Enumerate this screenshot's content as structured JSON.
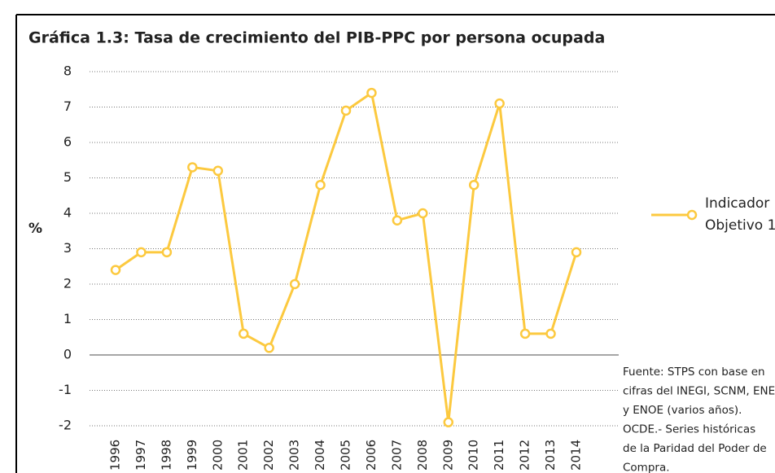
{
  "chart_data": {
    "type": "line",
    "title": "Gráfica 1.3: Tasa de crecimiento del PIB-PPC por persona ocupada",
    "y_label": "%",
    "categories": [
      "1996",
      "1997",
      "1998",
      "1999",
      "2000",
      "2001",
      "2002",
      "2003",
      "2004",
      "2005",
      "2006",
      "2007",
      "2008",
      "2009",
      "2010",
      "2011",
      "2012",
      "2013",
      "2014"
    ],
    "series": [
      {
        "name": [
          "Indicador",
          "Objetivo 1"
        ],
        "color": "#fcc93f",
        "values": [
          2.4,
          2.9,
          2.9,
          5.3,
          5.2,
          0.6,
          0.2,
          2.0,
          4.8,
          6.9,
          7.4,
          3.8,
          4.0,
          -1.9,
          4.8,
          7.1,
          0.6,
          0.6,
          2.9
        ]
      }
    ],
    "ylim": [
      -2,
      8
    ],
    "yticks": [
      -2,
      -1,
      0,
      1,
      2,
      3,
      4,
      5,
      6,
      7,
      8
    ],
    "grid": true,
    "source_note": [
      "Fuente: STPS con base en",
      "cifras del INEGI, SCNM, ENE",
      "y ENOE (varios años).",
      "OCDE.- Series históricas",
      "de la Paridad del Poder de",
      "Compra."
    ]
  }
}
